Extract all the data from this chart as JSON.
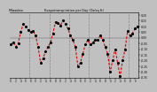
{
  "title": "Evapotranspiration per Day (Oz/sq ft)",
  "left_label": "Milwaukee",
  "background_color": "#c0c0c0",
  "plot_bg_color": "#c0c0c0",
  "line_color": "#dd0000",
  "dot_color": "#000000",
  "grid_color": "#888888",
  "ylim": [
    -0.35,
    0.22
  ],
  "ytick_vals": [
    0.2,
    0.15,
    0.1,
    0.05,
    0.0,
    -0.05,
    -0.1,
    -0.15,
    -0.2,
    -0.25,
    -0.3,
    -0.35
  ],
  "ytick_labels": [
    "0.20",
    "0.15",
    "0.10",
    "0.05",
    "0.00",
    "-0.05",
    "-0.10",
    "-0.15",
    "-0.20",
    "-0.25",
    "-0.30",
    "-0.35"
  ],
  "values": [
    -0.06,
    -0.04,
    -0.08,
    -0.05,
    0.05,
    0.12,
    0.1,
    0.07,
    0.05,
    0.06,
    0.02,
    -0.08,
    -0.22,
    -0.18,
    -0.12,
    -0.08,
    -0.04,
    0.04,
    0.14,
    0.13,
    0.11,
    0.15,
    0.12,
    0.08,
    0.02,
    -0.02,
    -0.08,
    -0.25,
    -0.22,
    -0.14,
    -0.06,
    -0.02,
    -0.06,
    -0.04,
    -0.02,
    -0.02,
    0.02,
    -0.02,
    -0.08,
    -0.14,
    -0.3,
    -0.2,
    -0.1,
    -0.22,
    -0.34,
    -0.2,
    -0.1,
    0.06,
    0.02,
    0.04,
    0.08,
    0.1
  ],
  "vline_positions": [
    7.5,
    15.5,
    23.5,
    31.5,
    39.5,
    47.5
  ],
  "num_points": 52
}
